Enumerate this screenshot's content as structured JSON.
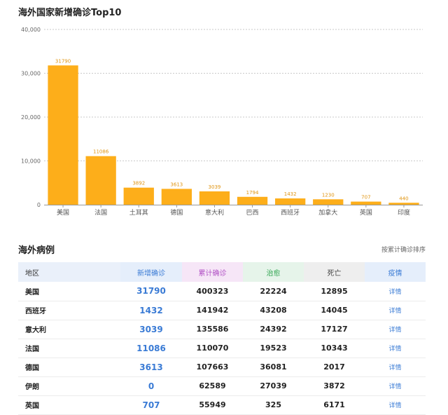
{
  "chart_data": {
    "type": "bar",
    "title": "海外国家新增确诊Top10",
    "categories": [
      "美国",
      "法国",
      "土耳其",
      "德国",
      "意大利",
      "巴西",
      "西班牙",
      "加拿大",
      "英国",
      "印度"
    ],
    "values": [
      31790,
      11086,
      3892,
      3613,
      3039,
      1794,
      1432,
      1230,
      707,
      440
    ],
    "data_labels": [
      "31790",
      "11086",
      "3892",
      "3613",
      "3039",
      "1794",
      "1432",
      "1230",
      "707",
      "440"
    ],
    "ylim": [
      0,
      40000
    ],
    "yticks": [
      0,
      10000,
      20000,
      30000,
      40000
    ],
    "ytick_labels": [
      "0",
      "10,000",
      "20,000",
      "30,000",
      "40,000"
    ],
    "grid": true,
    "bar_color": "#FDAE1A",
    "grid_color": "#c9c9c9"
  },
  "table": {
    "section_title": "海外病例",
    "sort_label": "按累计确诊排序",
    "headers": {
      "region": "地区",
      "new": "新增确诊",
      "total": "累计确诊",
      "cured": "治愈",
      "dead": "死亡",
      "detail": "疫情"
    },
    "rows": [
      {
        "region": "美国",
        "new": "31790",
        "total": "400323",
        "cured": "22224",
        "dead": "12895",
        "detail": "详情"
      },
      {
        "region": "西班牙",
        "new": "1432",
        "total": "141942",
        "cured": "43208",
        "dead": "14045",
        "detail": "详情"
      },
      {
        "region": "意大利",
        "new": "3039",
        "total": "135586",
        "cured": "24392",
        "dead": "17127",
        "detail": "详情"
      },
      {
        "region": "法国",
        "new": "11086",
        "total": "110070",
        "cured": "19523",
        "dead": "10343",
        "detail": "详情"
      },
      {
        "region": "德国",
        "new": "3613",
        "total": "107663",
        "cured": "36081",
        "dead": "2017",
        "detail": "详情"
      },
      {
        "region": "伊朗",
        "new": "0",
        "total": "62589",
        "cured": "27039",
        "dead": "3872",
        "detail": "详情"
      },
      {
        "region": "英国",
        "new": "707",
        "total": "55949",
        "cured": "325",
        "dead": "6171",
        "detail": "详情"
      }
    ]
  },
  "colors": {
    "new": "#3a7bd5",
    "total": "#b04fc4",
    "cured": "#2ea44f"
  }
}
